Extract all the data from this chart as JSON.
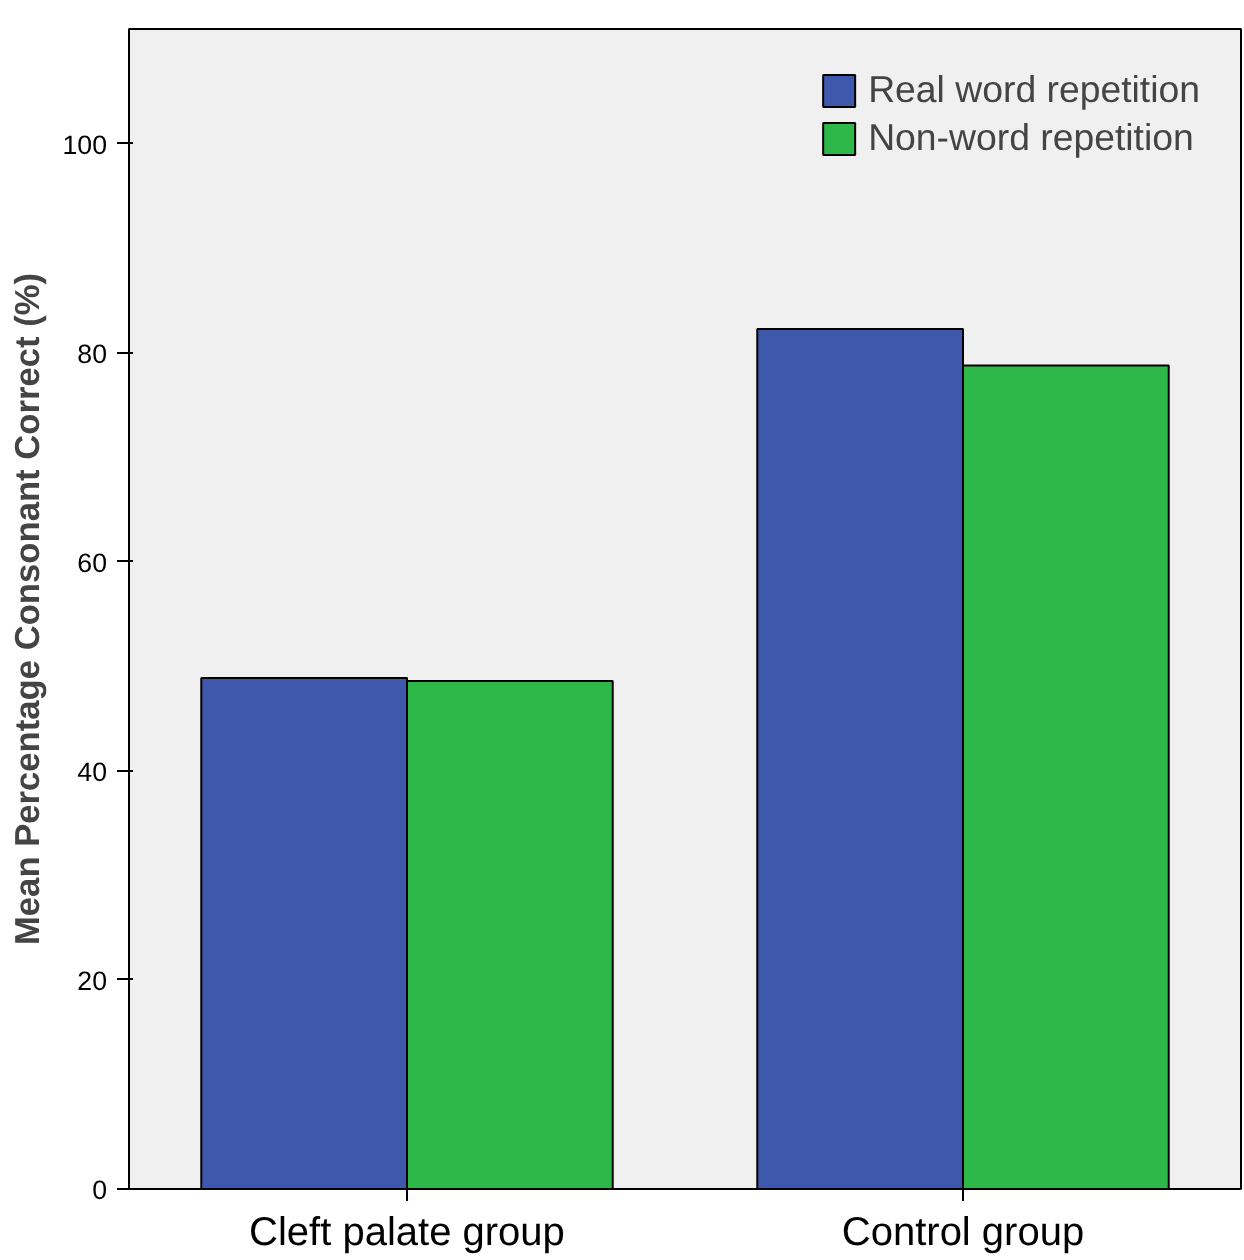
{
  "chart_data": {
    "type": "bar",
    "ylabel": "Mean Percentage Consonant Correct (%)",
    "categories": [
      "Cleft palate group",
      "Control group"
    ],
    "series": [
      {
        "name": "Real word repetition",
        "color": "#3e58ac",
        "values": [
          48.9,
          82.3
        ]
      },
      {
        "name": "Non-word repetition",
        "color": "#2eb84a",
        "values": [
          48.6,
          78.8
        ]
      }
    ],
    "ylim": [
      0,
      111
    ],
    "yticks": [
      0,
      20,
      40,
      60,
      80,
      100
    ],
    "grid": false,
    "legend": "top right"
  }
}
